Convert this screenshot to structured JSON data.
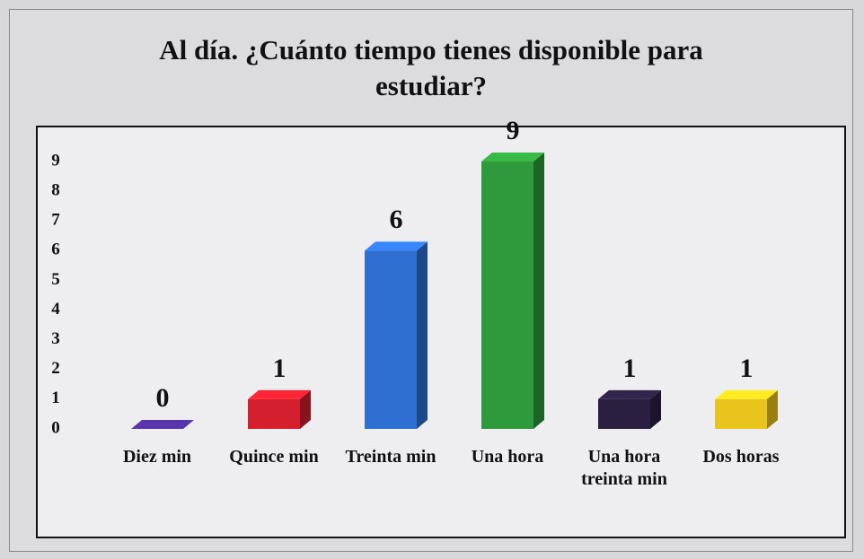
{
  "chart_data": {
    "type": "bar3d",
    "title": "Al día. ¿Cuánto tiempo tienes disponible para estudiar?",
    "categories": [
      "Diez min",
      "Quince min",
      "Treinta min",
      "Una hora",
      "Una hora treinta min",
      "Dos horas"
    ],
    "values": [
      0,
      1,
      6,
      9,
      1,
      1
    ],
    "colors": [
      "#4a2c8f",
      "#d41f2e",
      "#2f6fd2",
      "#2f9a3c",
      "#2b1f40",
      "#e9c41c"
    ],
    "ylim": [
      0,
      9
    ],
    "yticks": [
      0,
      1,
      2,
      3,
      4,
      5,
      6,
      7,
      8,
      9
    ],
    "grid": false
  }
}
